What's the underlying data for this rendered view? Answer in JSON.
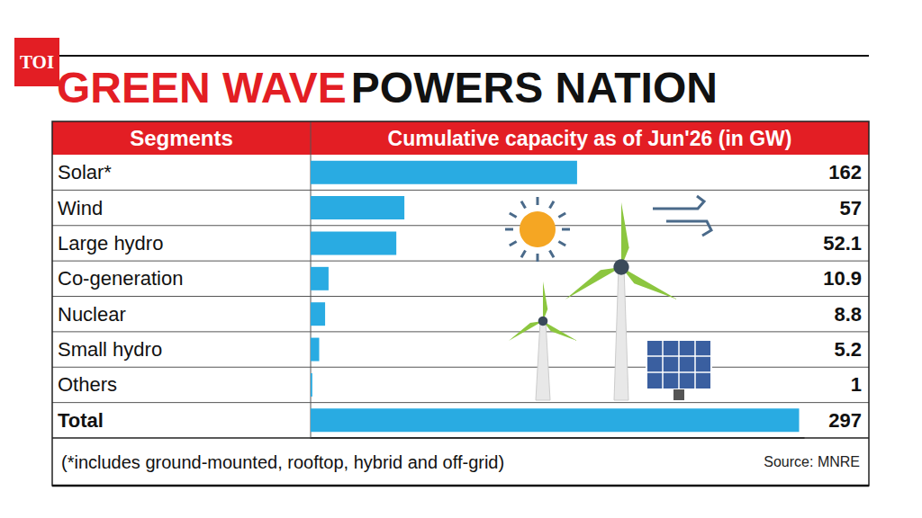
{
  "chart_data": {
    "type": "bar",
    "orientation": "horizontal",
    "title": "GREEN WAVE POWERS NATION",
    "logo": "TOI",
    "category_header": "Segments",
    "value_header": "Cumulative capacity as of Jun'26 (in GW)",
    "categories": [
      "Solar*",
      "Wind",
      "Large hydro",
      "Co-generation",
      "Nuclear",
      "Small hydro",
      "Others",
      "Total"
    ],
    "values": [
      162,
      57,
      52.1,
      10.9,
      8.8,
      5.2,
      1,
      297
    ],
    "color": "#29abe2",
    "xlim": [
      0,
      300
    ],
    "data_labels": true,
    "tick_labels": "y",
    "grid": true,
    "footnote": "(*includes ground-mounted, rooftop, hybrid and off-grid)",
    "source": "Source: MNRE"
  }
}
